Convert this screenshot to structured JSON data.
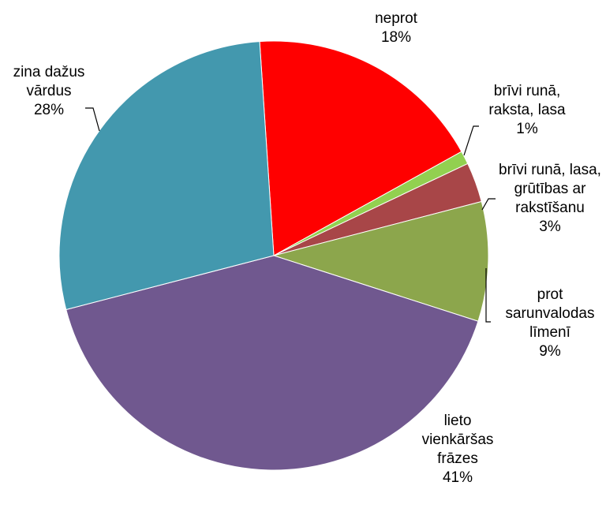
{
  "chart_data": {
    "type": "pie",
    "categories": [
      "neprot",
      "brīvi runā, raksta, lasa",
      "brīvi runā, lasa, grūtības ar rakstīšanu",
      "prot sarunvalodas līmenī",
      "lieto vienkāršas frāzes",
      "zina dažus vārdus"
    ],
    "values": [
      18,
      1,
      3,
      9,
      41,
      28
    ],
    "value_labels": [
      "18%",
      "1%",
      "3%",
      "9%",
      "41%",
      "28%"
    ],
    "colors": [
      "#ff0000",
      "#92d050",
      "#a84648",
      "#8ca64c",
      "#70588f",
      "#4398ae"
    ]
  }
}
